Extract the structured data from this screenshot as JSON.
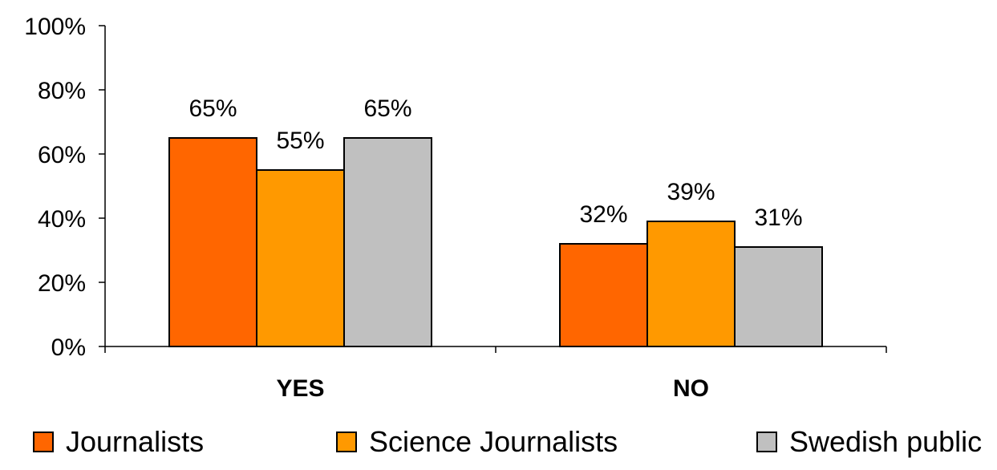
{
  "chart_data": {
    "type": "bar",
    "categories": [
      "YES",
      "NO"
    ],
    "series": [
      {
        "name": "Journalists",
        "values": [
          65,
          32
        ],
        "color": "#ff6600"
      },
      {
        "name": "Science Journalists",
        "values": [
          55,
          39
        ],
        "color": "#ff9900"
      },
      {
        "name": "Swedish public",
        "values": [
          65,
          31
        ],
        "color": "#c0c0c0"
      }
    ],
    "data_labels": [
      [
        "65%",
        "32%"
      ],
      [
        "55%",
        "39%"
      ],
      [
        "65%",
        "31%"
      ]
    ],
    "y_ticks": [
      0,
      20,
      40,
      60,
      80,
      100
    ],
    "y_tick_labels": [
      "0%",
      "20%",
      "40%",
      "60%",
      "80%",
      "100%"
    ],
    "ylim": [
      0,
      100
    ],
    "title": "",
    "xlabel": "",
    "ylabel": "",
    "grid": false,
    "legend_position": "bottom"
  }
}
